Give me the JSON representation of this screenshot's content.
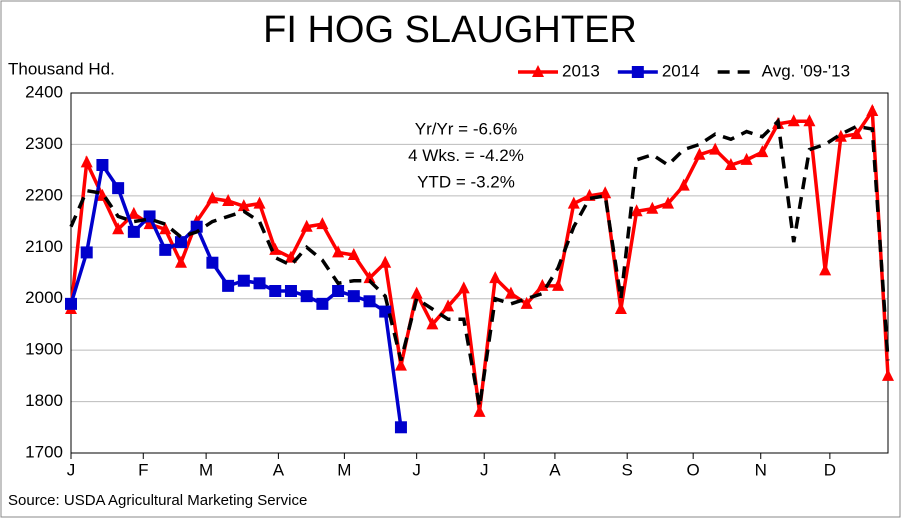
{
  "chart_data": {
    "type": "line",
    "title": "FI HOG SLAUGHTER",
    "y_label": "Thousand Hd.",
    "source": "Source: USDA Agricultural Marketing Service",
    "annotations": [
      "Yr/Yr = -6.6%",
      "4 Wks. = -4.2%",
      "YTD = -3.2%"
    ],
    "xlim": [
      0,
      52
    ],
    "xticks": [
      {
        "value": 0,
        "label": "J"
      },
      {
        "value": 4.6,
        "label": "F"
      },
      {
        "value": 8.6,
        "label": "M"
      },
      {
        "value": 13.2,
        "label": "A"
      },
      {
        "value": 17.4,
        "label": "M"
      },
      {
        "value": 22,
        "label": "J"
      },
      {
        "value": 26.3,
        "label": "J"
      },
      {
        "value": 30.8,
        "label": "A"
      },
      {
        "value": 35.4,
        "label": "S"
      },
      {
        "value": 39.6,
        "label": "O"
      },
      {
        "value": 43.9,
        "label": "N"
      },
      {
        "value": 48.3,
        "label": "D"
      }
    ],
    "ylim": [
      1700,
      2400
    ],
    "yticks": [
      1700,
      1800,
      1900,
      2000,
      2100,
      2200,
      2300,
      2400
    ],
    "grid": true,
    "legend": "top-right",
    "series": [
      {
        "name": "2013",
        "color": "#ff0000",
        "marker": "triangle",
        "dash": false,
        "values": [
          1980,
          2265,
          2200,
          2135,
          2165,
          2145,
          2135,
          2070,
          2150,
          2195,
          2190,
          2180,
          2185,
          2095,
          2080,
          2140,
          2145,
          2090,
          2085,
          2040,
          2070,
          1870,
          2010,
          1950,
          1985,
          2020,
          1780,
          2040,
          2010,
          1990,
          2025,
          2025,
          2185,
          2200,
          2205,
          1980,
          2170,
          2175,
          2185,
          2220,
          2280,
          2290,
          2260,
          2270,
          2285,
          2340,
          2345,
          2345,
          2055,
          2315,
          2320,
          2365,
          1850
        ]
      },
      {
        "name": "2014",
        "color": "#0000cc",
        "marker": "square",
        "dash": false,
        "values": [
          1990,
          2090,
          2260,
          2215,
          2130,
          2160,
          2095,
          2110,
          2140,
          2070,
          2025,
          2035,
          2030,
          2015,
          2015,
          2005,
          1990,
          2015,
          2005,
          1995,
          1975,
          1750
        ]
      },
      {
        "name": "Avg. '09-'13",
        "color": "#000000",
        "marker": "none",
        "dash": true,
        "values": [
          2140,
          2210,
          2205,
          2160,
          2150,
          2155,
          2145,
          2120,
          2130,
          2150,
          2160,
          2170,
          2150,
          2080,
          2065,
          2100,
          2075,
          2030,
          2035,
          2035,
          2005,
          1880,
          2000,
          1980,
          1960,
          1960,
          1790,
          2000,
          1990,
          2000,
          2010,
          2060,
          2140,
          2195,
          2200,
          2000,
          2270,
          2280,
          2260,
          2290,
          2300,
          2320,
          2310,
          2325,
          2315,
          2345,
          2110,
          2290,
          2300,
          2320,
          2335,
          2330,
          1880
        ]
      }
    ]
  }
}
